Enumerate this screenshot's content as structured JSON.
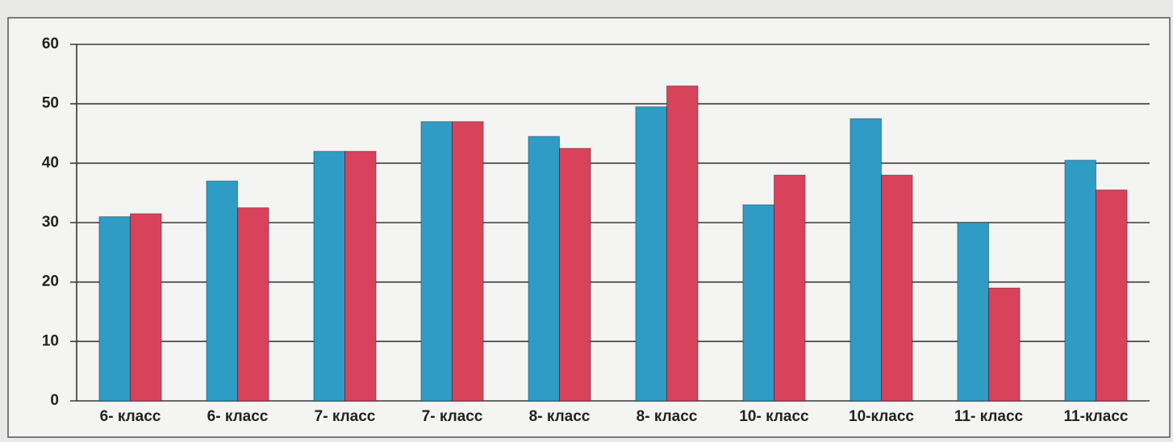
{
  "chart_data": {
    "type": "bar",
    "categories": [
      "6- класс",
      "6- класс",
      "7- класс",
      "7- класс",
      "8- класс",
      "8- класс",
      "10- класс",
      "10-класс",
      "11- класс",
      "11-класс"
    ],
    "series": [
      {
        "color": "#2f9cc6",
        "values": [
          31,
          37,
          42,
          47,
          44.5,
          49.5,
          33,
          47.5,
          30,
          40.5
        ]
      },
      {
        "color": "#d8435b",
        "values": [
          31.5,
          32.5,
          42,
          47,
          42.5,
          53,
          38,
          38,
          19,
          35.5
        ]
      }
    ],
    "ylim": [
      0,
      60
    ],
    "yticks": [
      0,
      10,
      20,
      30,
      40,
      50,
      60
    ],
    "grid": true
  }
}
